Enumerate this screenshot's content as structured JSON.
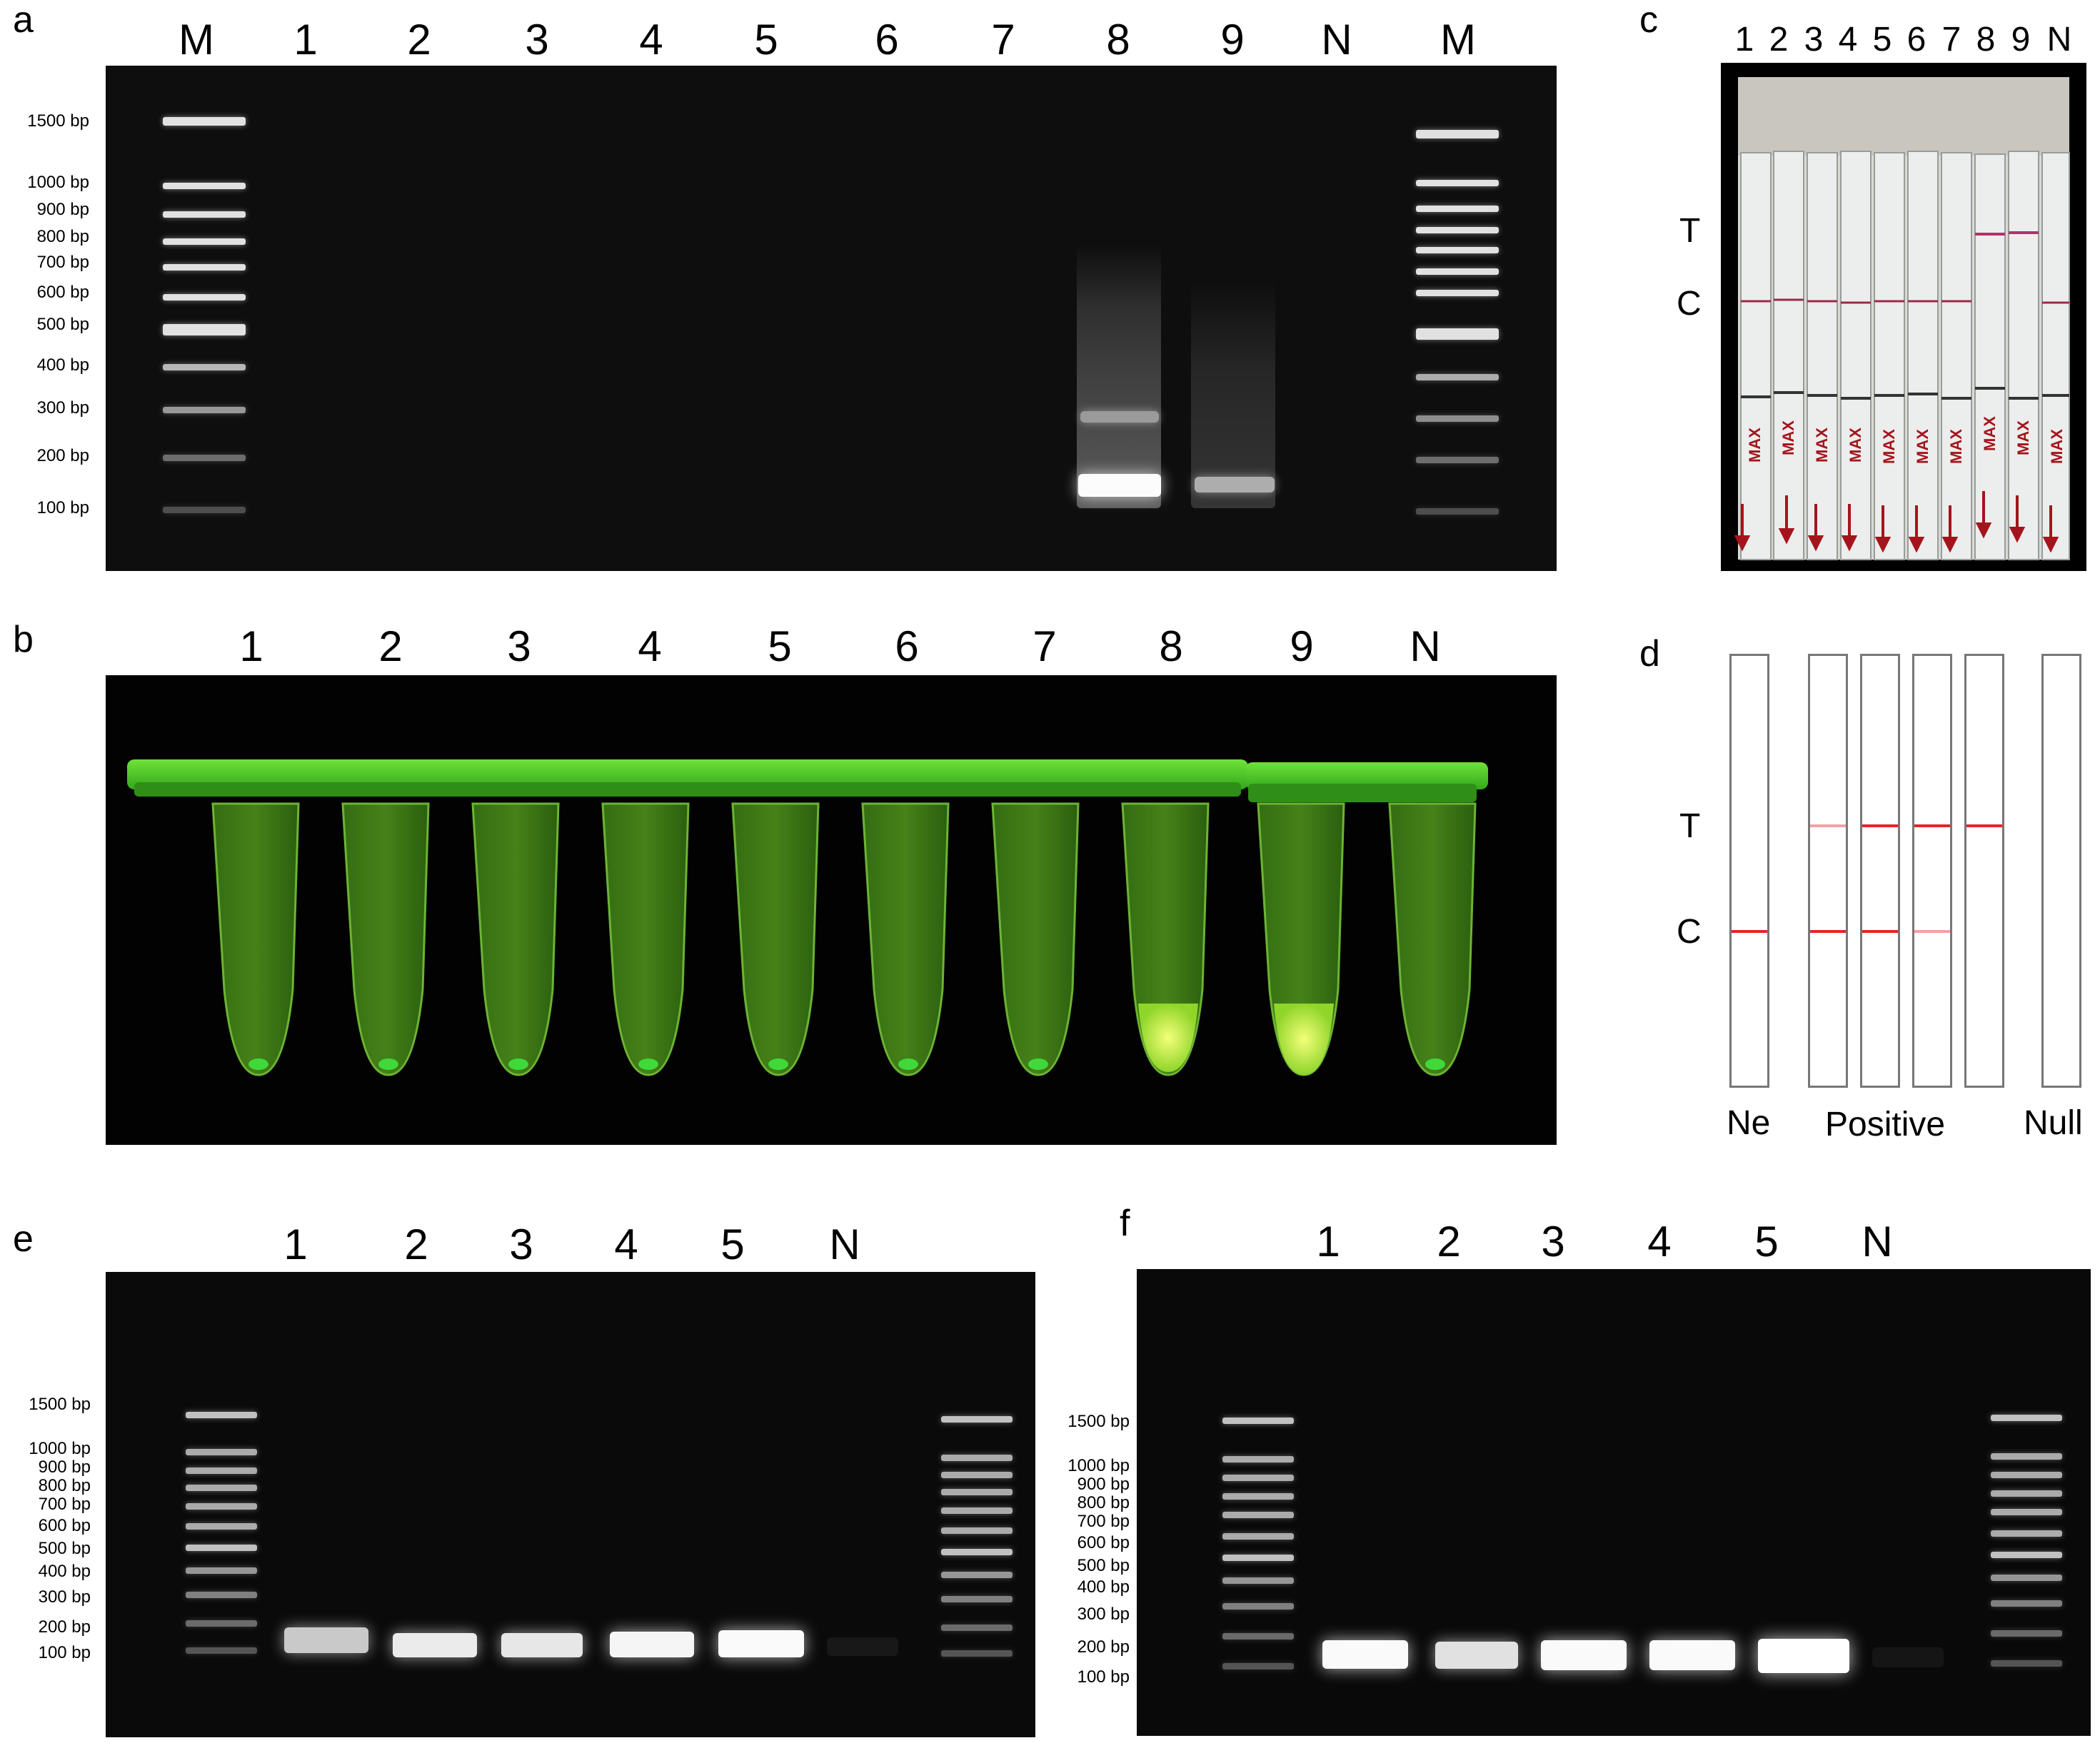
{
  "panel_letters": {
    "a": "a",
    "b": "b",
    "c": "c",
    "d": "d",
    "e": "e",
    "f": "f"
  },
  "panel_a": {
    "lanes": [
      "M",
      "1",
      "2",
      "3",
      "4",
      "5",
      "6",
      "7",
      "8",
      "9",
      "N",
      "M"
    ],
    "markers": [
      "1500 bp",
      "1000 bp",
      "900 bp",
      "800 bp",
      "700 bp",
      "600 bp",
      "500 bp",
      "400 bp",
      "300 bp",
      "200 bp",
      "100 bp"
    ]
  },
  "panel_b": {
    "lanes": [
      "1",
      "2",
      "3",
      "4",
      "5",
      "6",
      "7",
      "8",
      "9",
      "N"
    ]
  },
  "panel_c": {
    "lanes": [
      "1",
      "2",
      "3",
      "4",
      "5",
      "6",
      "7",
      "8",
      "9",
      "N"
    ],
    "line_labels": {
      "test": "T",
      "control": "C"
    },
    "strip_text": "MAX"
  },
  "panel_d": {
    "line_labels": {
      "test": "T",
      "control": "C"
    },
    "categories": {
      "negative": "Ne",
      "positive": "Positive",
      "null": "Null"
    },
    "line_color": "#e8232a",
    "faint_line_color": "#f3a1a4"
  },
  "panel_e": {
    "lanes": [
      "1",
      "2",
      "3",
      "4",
      "5",
      "N"
    ],
    "markers": [
      "1500 bp",
      "1000 bp",
      "900 bp",
      "800 bp",
      "700 bp",
      "600 bp",
      "500 bp",
      "400 bp",
      "300 bp",
      "200 bp",
      "100 bp"
    ]
  },
  "panel_f": {
    "lanes": [
      "1",
      "2",
      "3",
      "4",
      "5",
      "N"
    ],
    "markers": [
      "1500 bp",
      "1000 bp",
      "900 bp",
      "800 bp",
      "700 bp",
      "600 bp",
      "500 bp",
      "400 bp",
      "300 bp",
      "200 bp",
      "100 bp"
    ]
  }
}
